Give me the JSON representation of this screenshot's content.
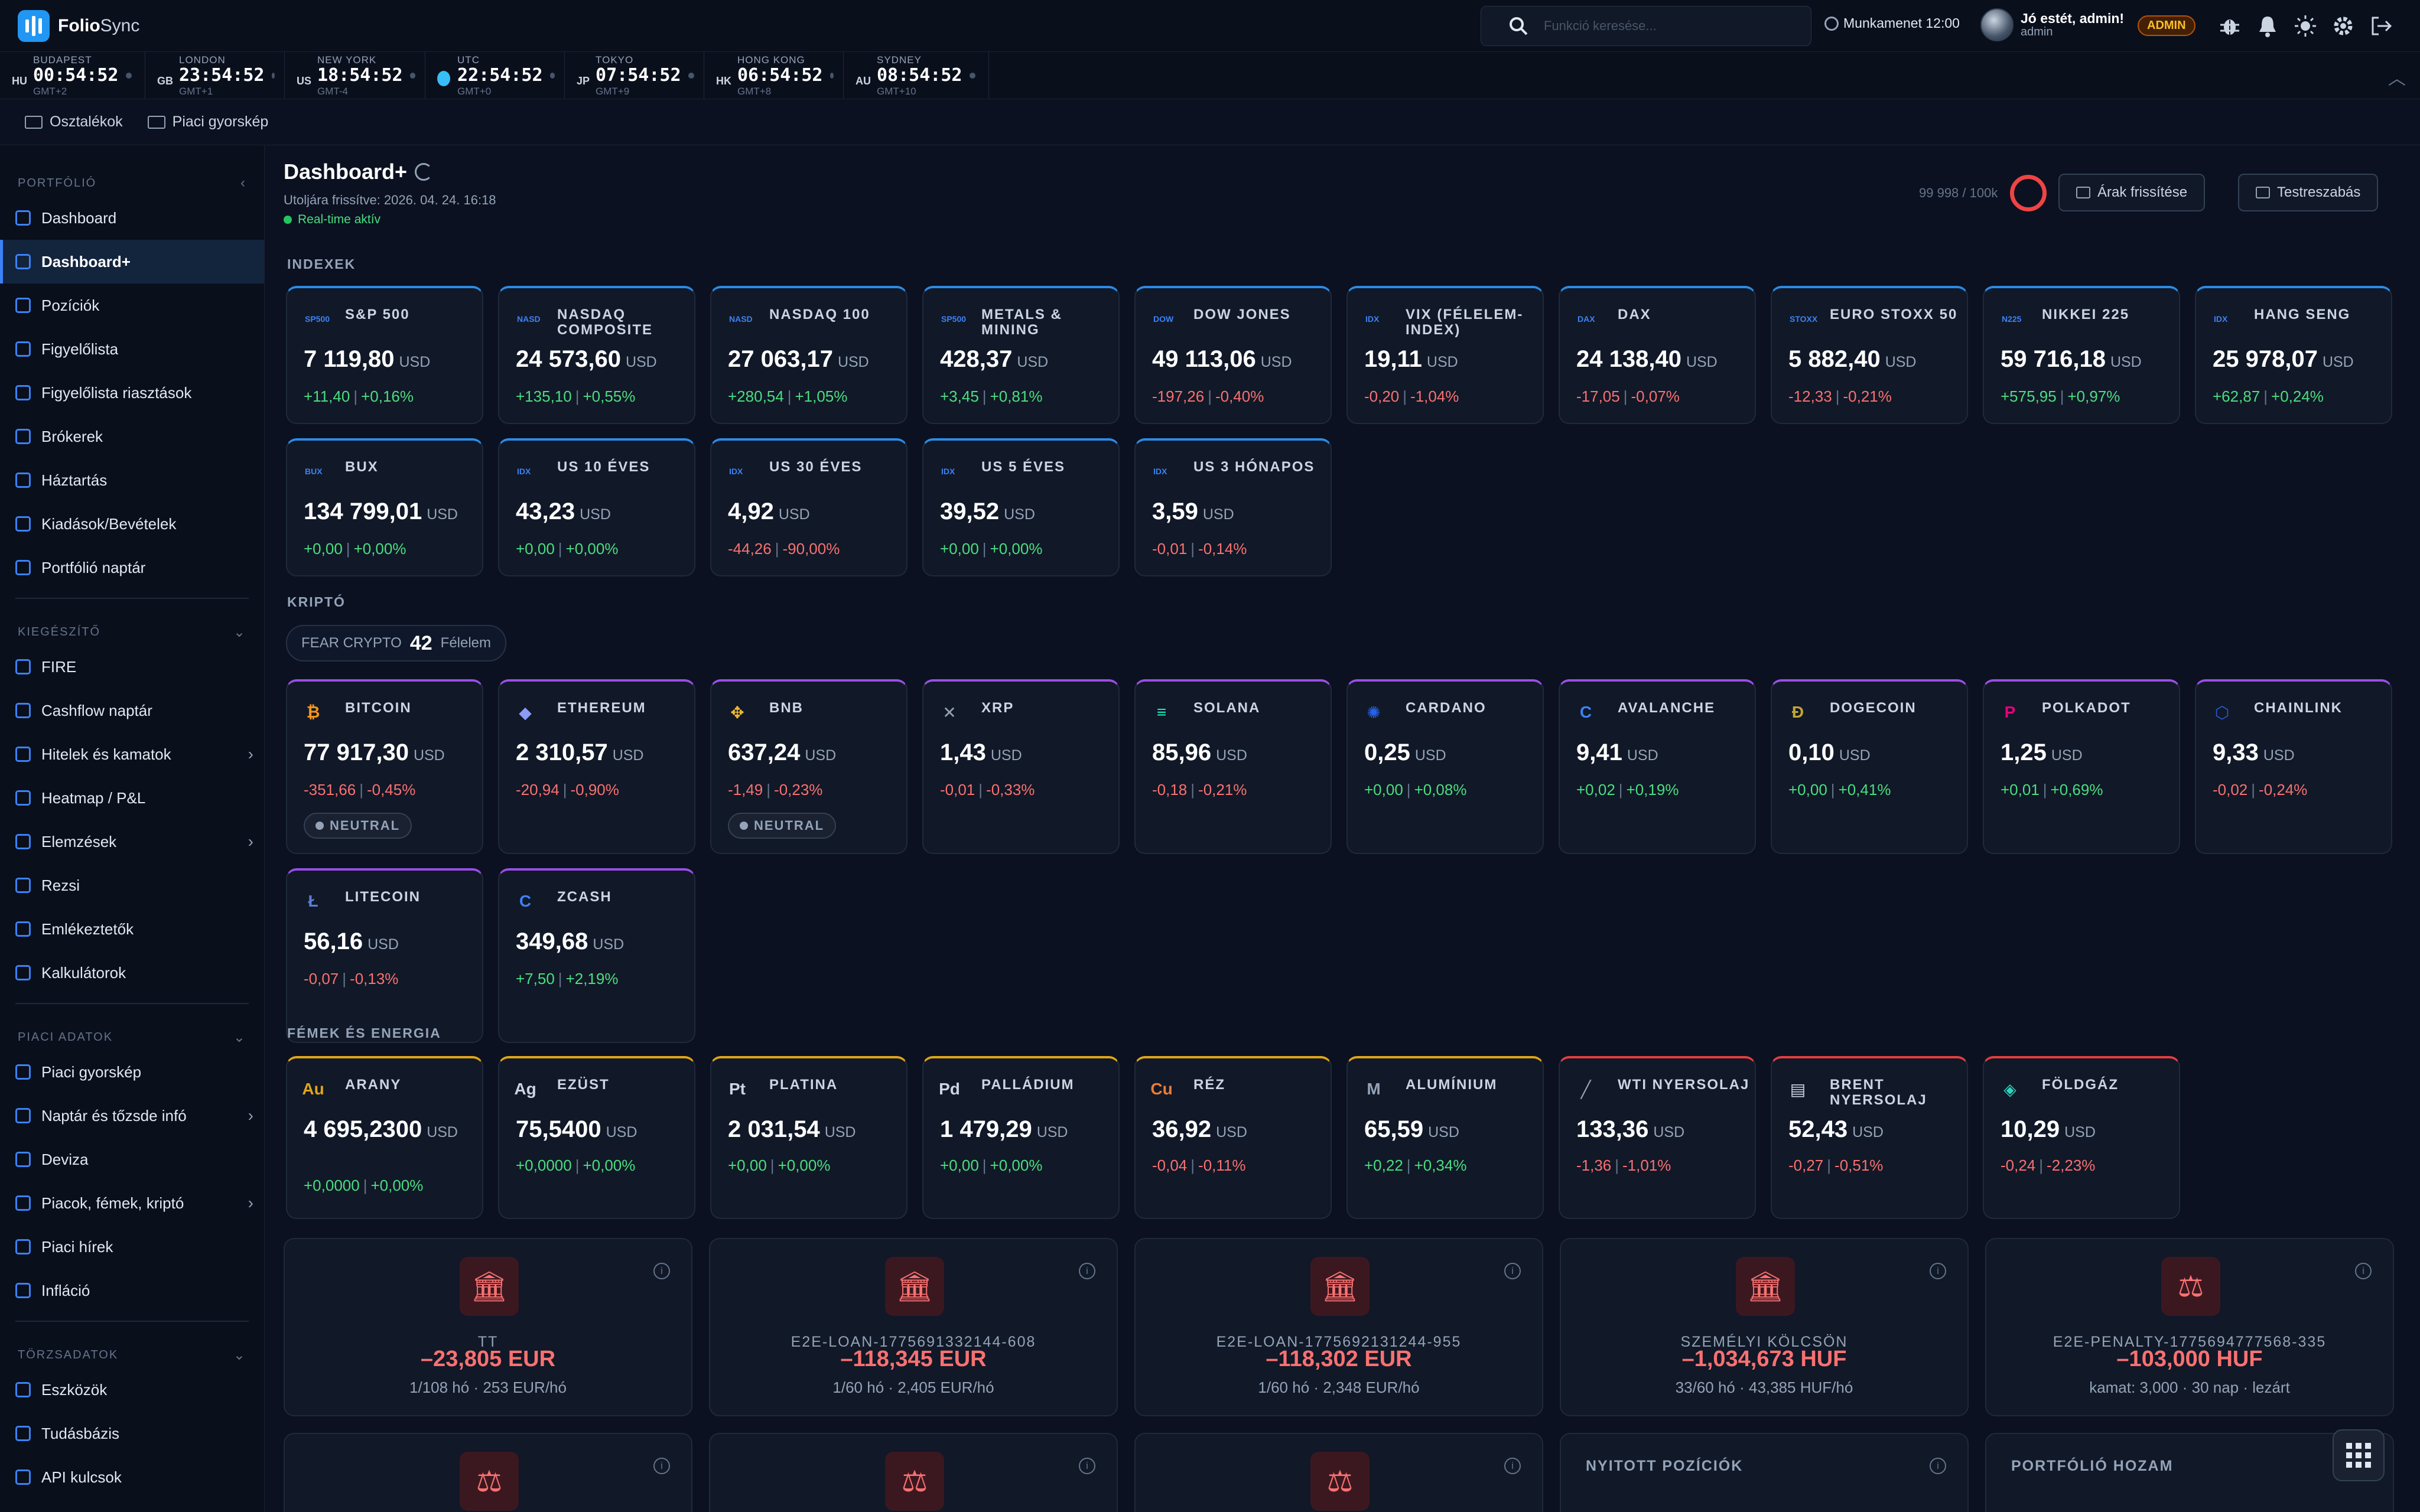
{
  "app": {
    "brand_main": "Folio",
    "brand_sub": "Sync"
  },
  "search": {
    "placeholder": "Funkció keresése..."
  },
  "session": {
    "label": "Munkamenet",
    "time": "12:00"
  },
  "user": {
    "greeting": "Jó estét, admin!",
    "role_line": "admin",
    "badge": "ADMIN"
  },
  "clocks": [
    {
      "cc": "HU",
      "city": "BUDAPEST",
      "time": "00:54:52",
      "gmt": "GMT+2"
    },
    {
      "cc": "GB",
      "city": "LONDON",
      "time": "23:54:52",
      "gmt": "GMT+1"
    },
    {
      "cc": "US",
      "city": "NEW YORK",
      "time": "18:54:52",
      "gmt": "GMT-4"
    },
    {
      "cc": "",
      "city": "UTC",
      "time": "22:54:52",
      "gmt": "GMT+0"
    },
    {
      "cc": "JP",
      "city": "TOKYO",
      "time": "07:54:52",
      "gmt": "GMT+9"
    },
    {
      "cc": "HK",
      "city": "HONG KONG",
      "time": "06:54:52",
      "gmt": "GMT+8"
    },
    {
      "cc": "AU",
      "city": "SYDNEY",
      "time": "08:54:52",
      "gmt": "GMT+10"
    }
  ],
  "toptabs": [
    "Osztalékok",
    "Piaci gyorskép"
  ],
  "sidebar": {
    "sec_portfolio": "PORTFÓLIÓ",
    "portfolio": [
      "Dashboard",
      "Dashboard+",
      "Pozíciók",
      "Figyelőlista",
      "Figyelőlista riasztások",
      "Brókerek",
      "Háztartás",
      "Kiadások/Bevételek",
      "Portfólió naptár"
    ],
    "sec_ext": "KIEGÉSZÍTŐ",
    "ext": [
      "FIRE",
      "Cashflow naptár",
      "Hitelek és kamatok",
      "Heatmap / P&L",
      "Elemzések",
      "Rezsi",
      "Emlékeztetők",
      "Kalkulátorok"
    ],
    "sec_market": "PIACI ADATOK",
    "market": [
      "Piaci gyorskép",
      "Naptár és tőzsde infó",
      "Deviza",
      "Piacok, fémek, kriptó",
      "Piaci hírek",
      "Infláció"
    ],
    "sec_master": "TÖRZSADATOK",
    "master": [
      "Eszközök",
      "Tudásbázis",
      "API kulcsok"
    ]
  },
  "header": {
    "title": "Dashboard+",
    "last_updated": "Utoljára frissítve: 2026. 04. 24. 16:18",
    "realtime": "Real-time aktív",
    "quota": "99 998 / 100k",
    "refresh_btn": "Árak frissítése",
    "customize_btn": "Testreszabás"
  },
  "sections": {
    "indexes": "INDEXEK",
    "crypto": "KRIPTÓ",
    "metals": "FÉMEK ÉS ENERGIA"
  },
  "indexes": [
    {
      "tick": "SP500",
      "name": "S&P 500",
      "value": "7 119,80",
      "cur": "USD",
      "chg": "+11,40",
      "pct": "+0,16%",
      "dir": "up"
    },
    {
      "tick": "NASD",
      "name": "NASDAQ COMPOSITE",
      "value": "24 573,60",
      "cur": "USD",
      "chg": "+135,10",
      "pct": "+0,55%",
      "dir": "up"
    },
    {
      "tick": "NASD",
      "name": "NASDAQ 100",
      "value": "27 063,17",
      "cur": "USD",
      "chg": "+280,54",
      "pct": "+1,05%",
      "dir": "up"
    },
    {
      "tick": "SP500",
      "name": "METALS & MINING",
      "value": "428,37",
      "cur": "USD",
      "chg": "+3,45",
      "pct": "+0,81%",
      "dir": "up"
    },
    {
      "tick": "DOW",
      "name": "DOW JONES",
      "value": "49 113,06",
      "cur": "USD",
      "chg": "-197,26",
      "pct": "-0,40%",
      "dir": "dn"
    },
    {
      "tick": "IDX",
      "name": "VIX (FÉLELEM-INDEX)",
      "value": "19,11",
      "cur": "USD",
      "chg": "-0,20",
      "pct": "-1,04%",
      "dir": "dn"
    },
    {
      "tick": "DAX",
      "name": "DAX",
      "value": "24 138,40",
      "cur": "USD",
      "chg": "-17,05",
      "pct": "-0,07%",
      "dir": "dn"
    },
    {
      "tick": "STOXX",
      "name": "EURO STOXX 50",
      "value": "5 882,40",
      "cur": "USD",
      "chg": "-12,33",
      "pct": "-0,21%",
      "dir": "dn"
    },
    {
      "tick": "N225",
      "name": "NIKKEI 225",
      "value": "59 716,18",
      "cur": "USD",
      "chg": "+575,95",
      "pct": "+0,97%",
      "dir": "up"
    },
    {
      "tick": "IDX",
      "name": "HANG SENG",
      "value": "25 978,07",
      "cur": "USD",
      "chg": "+62,87",
      "pct": "+0,24%",
      "dir": "up"
    },
    {
      "tick": "BUX",
      "name": "BUX",
      "value": "134 799,01",
      "cur": "USD",
      "chg": "+0,00",
      "pct": "+0,00%",
      "dir": "up"
    },
    {
      "tick": "IDX",
      "name": "US 10 ÉVES",
      "value": "43,23",
      "cur": "USD",
      "chg": "+0,00",
      "pct": "+0,00%",
      "dir": "up"
    },
    {
      "tick": "IDX",
      "name": "US 30 ÉVES",
      "value": "4,92",
      "cur": "USD",
      "chg": "-44,26",
      "pct": "-90,00%",
      "dir": "dn"
    },
    {
      "tick": "IDX",
      "name": "US 5 ÉVES",
      "value": "39,52",
      "cur": "USD",
      "chg": "+0,00",
      "pct": "+0,00%",
      "dir": "up"
    },
    {
      "tick": "IDX",
      "name": "US 3 HÓNAPOS",
      "value": "3,59",
      "cur": "USD",
      "chg": "-0,01",
      "pct": "-0,14%",
      "dir": "dn"
    }
  ],
  "fear": {
    "label": "FEAR CRYPTO",
    "value": "42",
    "state": "Félelem"
  },
  "crypto": [
    {
      "sym": "₿",
      "color": "#f7931a",
      "name": "BITCOIN",
      "value": "77 917,30",
      "cur": "USD",
      "chg": "-351,66",
      "pct": "-0,45%",
      "dir": "dn",
      "badge": "NEUTRAL"
    },
    {
      "sym": "◆",
      "color": "#8b9cf7",
      "name": "ETHEREUM",
      "value": "2 310,57",
      "cur": "USD",
      "chg": "-20,94",
      "pct": "-0,90%",
      "dir": "dn"
    },
    {
      "sym": "✥",
      "color": "#f3ba2f",
      "name": "BNB",
      "value": "637,24",
      "cur": "USD",
      "chg": "-1,49",
      "pct": "-0,23%",
      "dir": "dn",
      "badge": "NEUTRAL"
    },
    {
      "sym": "✕",
      "color": "#111827",
      "name": "XRP",
      "value": "1,43",
      "cur": "USD",
      "chg": "-0,01",
      "pct": "-0,33%",
      "dir": "dn"
    },
    {
      "sym": "≡",
      "color": "#14f1c5",
      "name": "SOLANA",
      "value": "85,96",
      "cur": "USD",
      "chg": "-0,18",
      "pct": "-0,21%",
      "dir": "dn"
    },
    {
      "sym": "✺",
      "color": "#2563eb",
      "name": "CARDANO",
      "value": "0,25",
      "cur": "USD",
      "chg": "+0,00",
      "pct": "+0,08%",
      "dir": "up"
    },
    {
      "sym": "C",
      "color": "#3b82f6",
      "name": "AVALANCHE",
      "value": "9,41",
      "cur": "USD",
      "chg": "+0,02",
      "pct": "+0,19%",
      "dir": "up"
    },
    {
      "sym": "Ð",
      "color": "#c2a633",
      "name": "DOGECOIN",
      "value": "0,10",
      "cur": "USD",
      "chg": "+0,00",
      "pct": "+0,41%",
      "dir": "up"
    },
    {
      "sym": "P",
      "color": "#e6007a",
      "name": "POLKADOT",
      "value": "1,25",
      "cur": "USD",
      "chg": "+0,01",
      "pct": "+0,69%",
      "dir": "up"
    },
    {
      "sym": "⬡",
      "color": "#2a5ada",
      "name": "CHAINLINK",
      "value": "9,33",
      "cur": "USD",
      "chg": "-0,02",
      "pct": "-0,24%",
      "dir": "dn"
    },
    {
      "sym": "Ł",
      "color": "#5b7fd6",
      "name": "LITECOIN",
      "value": "56,16",
      "cur": "USD",
      "chg": "-0,07",
      "pct": "-0,13%",
      "dir": "dn"
    },
    {
      "sym": "C",
      "color": "#3b82f6",
      "name": "ZCASH",
      "value": "349,68",
      "cur": "USD",
      "chg": "+7,50",
      "pct": "+2,19%",
      "dir": "up"
    }
  ],
  "metals": [
    {
      "sym": "Au",
      "color": "#e0a516",
      "name": "ARANY",
      "value": "4 695,2300",
      "cur": "USD",
      "chg": "+0,0000",
      "pct": "+0,00%",
      "dir": "up",
      "border": "gold"
    },
    {
      "sym": "Ag",
      "color": "#cbd5e1",
      "name": "EZÜST",
      "value": "75,5400",
      "cur": "USD",
      "chg": "+0,0000",
      "pct": "+0,00%",
      "dir": "up",
      "border": "gold"
    },
    {
      "sym": "Pt",
      "color": "#cbd5e1",
      "name": "PLATINA",
      "value": "2 031,54",
      "cur": "USD",
      "chg": "+0,00",
      "pct": "+0,00%",
      "dir": "up",
      "border": "gold"
    },
    {
      "sym": "Pd",
      "color": "#cbd5e1",
      "name": "PALLÁDIUM",
      "value": "1 479,29",
      "cur": "USD",
      "chg": "+0,00",
      "pct": "+0,00%",
      "dir": "up",
      "border": "gold"
    },
    {
      "sym": "Cu",
      "color": "#ea7d36",
      "name": "RÉZ",
      "value": "36,92",
      "cur": "USD",
      "chg": "-0,04",
      "pct": "-0,11%",
      "dir": "dn",
      "border": "gold"
    },
    {
      "sym": "M",
      "color": "#94a3b8",
      "name": "ALUMÍNIUM",
      "value": "65,59",
      "cur": "USD",
      "chg": "+0,22",
      "pct": "+0,34%",
      "dir": "up",
      "border": "gold"
    },
    {
      "sym": "╱",
      "color": "#94a3b8",
      "name": "WTI NYERSOLAJ",
      "value": "133,36",
      "cur": "USD",
      "chg": "-1,36",
      "pct": "-1,01%",
      "dir": "dn",
      "border": "red"
    },
    {
      "sym": "▤",
      "color": "#cbd5e1",
      "name": "BRENT NYERSOLAJ",
      "value": "52,43",
      "cur": "USD",
      "chg": "-0,27",
      "pct": "-0,51%",
      "dir": "dn",
      "border": "red"
    },
    {
      "sym": "◈",
      "color": "#2dd4bf",
      "name": "FÖLDGÁZ",
      "value": "10,29",
      "cur": "USD",
      "chg": "-0,24",
      "pct": "-2,23%",
      "dir": "dn",
      "border": "red"
    }
  ],
  "loans": [
    {
      "icon": "bank-icon",
      "glyph": "🏛",
      "name": "TT",
      "amount": "–23,805 EUR",
      "detail": "1/108 hó · 253 EUR/hó"
    },
    {
      "icon": "bank-icon",
      "glyph": "🏛",
      "name": "E2E-LOAN-1775691332144-608",
      "amount": "–118,345 EUR",
      "detail": "1/60 hó · 2,405 EUR/hó"
    },
    {
      "icon": "bank-icon",
      "glyph": "🏛",
      "name": "E2E-LOAN-1775692131244-955",
      "amount": "–118,302 EUR",
      "detail": "1/60 hó · 2,348 EUR/hó"
    },
    {
      "icon": "bank-icon",
      "glyph": "🏛",
      "name": "SZEMÉLYI KÖLCSÖN",
      "amount": "–1,034,673 HUF",
      "detail": "33/60 hó · 43,385 HUF/hó"
    },
    {
      "icon": "gavel-icon",
      "glyph": "⚖",
      "name": "E2E-PENALTY-1775694777568-335",
      "amount": "–103,000 HUF",
      "detail": "kamat: 3,000 · 30 nap · lezárt"
    }
  ],
  "bottom": {
    "open_positions": "NYITOTT POZÍCIÓK",
    "portfolio_return": "PORTFÓLIÓ HOZAM",
    "info": "i"
  }
}
